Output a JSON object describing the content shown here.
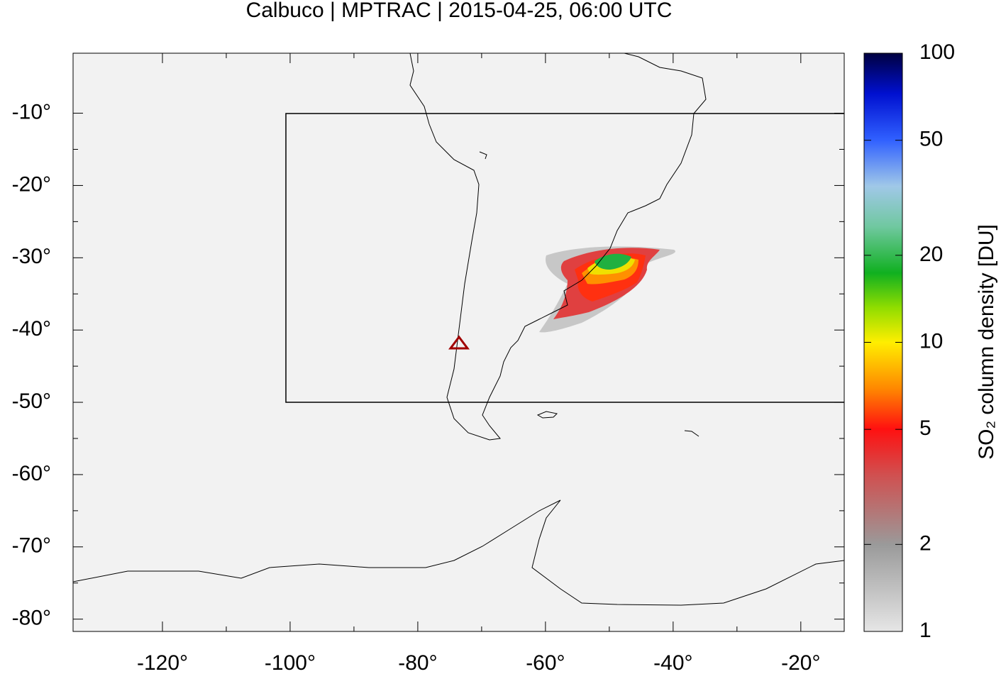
{
  "chart_data": {
    "type": "map",
    "title": "Calbuco | MPTRAC | 2015-04-25, 06:00 UTC",
    "xlim": [
      -134,
      -13.2
    ],
    "ylim": [
      -81.7,
      -1.7
    ],
    "xticks": [
      {
        "value": -120,
        "label": "-120°"
      },
      {
        "value": -100,
        "label": "-100°"
      },
      {
        "value": -80,
        "label": "-80°"
      },
      {
        "value": -60,
        "label": "-60°"
      },
      {
        "value": -40,
        "label": "-40°"
      },
      {
        "value": -20,
        "label": "-20°"
      }
    ],
    "yticks": [
      {
        "value": -10,
        "label": "-10°"
      },
      {
        "value": -20,
        "label": "-20°"
      },
      {
        "value": -30,
        "label": "-30°"
      },
      {
        "value": -40,
        "label": "-40°"
      },
      {
        "value": -50,
        "label": "-50°"
      },
      {
        "value": -60,
        "label": "-60°"
      },
      {
        "value": -70,
        "label": "-70°"
      },
      {
        "value": -80,
        "label": "-80°"
      }
    ],
    "colorbar": {
      "label": "SO₂ column density [DU]",
      "log_scale": true,
      "lim": [
        1,
        100
      ],
      "ticks": [
        1,
        2,
        5,
        10,
        20,
        50,
        100
      ]
    }
  }
}
